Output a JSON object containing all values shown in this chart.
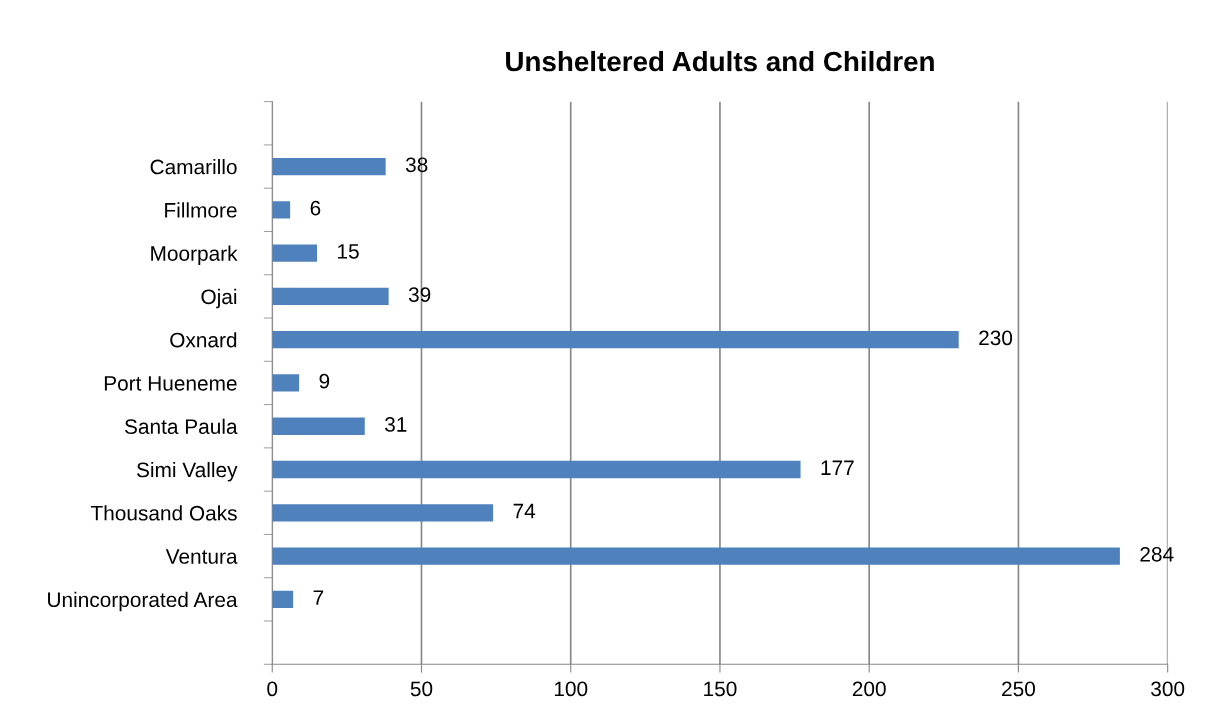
{
  "chart_data": {
    "type": "bar",
    "orientation": "horizontal",
    "title": "Unsheltered Adults and Children",
    "categories": [
      "Camarillo",
      "Fillmore",
      "Moorpark",
      "Ojai",
      "Oxnard",
      "Port Hueneme",
      "Santa Paula",
      "Simi Valley",
      "Thousand Oaks",
      "Ventura",
      "Unincorporated Area",
      null
    ],
    "values": [
      38,
      6,
      15,
      39,
      230,
      9,
      31,
      177,
      74,
      284,
      7,
      null
    ],
    "color": "#4f81bd",
    "xlim": [
      0,
      300
    ],
    "xticks": [
      0,
      50,
      100,
      150,
      200,
      250,
      300
    ],
    "grid": "x",
    "data_labels": true
  }
}
